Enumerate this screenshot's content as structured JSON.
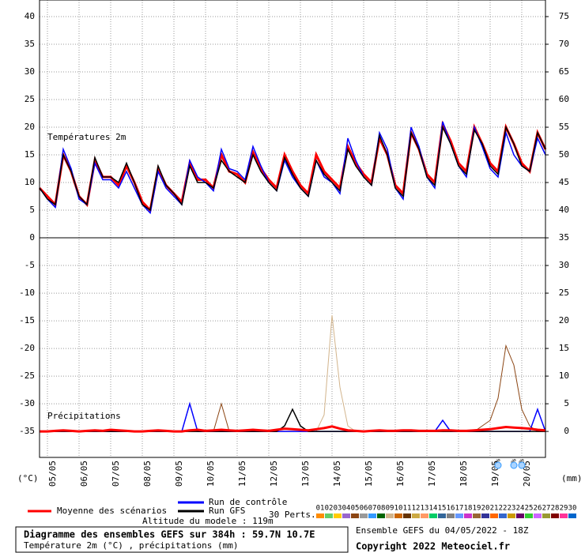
{
  "chart_data": {
    "type": "line",
    "subtitle_temp": "Températures 2m",
    "subtitle_precip": "Précipitations",
    "ylabel": "(°C)",
    "y2label": "(mm)",
    "title": "Diagramme des ensembles GEFS sur 384h : 59.7N 10.7E",
    "caption": "Température 2m (°C) , précipitations (mm)",
    "altitude": "Altitude du modele : 119m",
    "run_info": "Ensemble GEFS du 04/05/2022 - 18Z",
    "copyright": "Copyright 2022 Meteociel.fr",
    "grid": true,
    "xlim": [
      0,
      384
    ],
    "ylim": [
      -39.7,
      43
    ],
    "y2lim": [
      -4.7,
      78
    ],
    "yticks": [
      40,
      35,
      30,
      25,
      20,
      15,
      10,
      5,
      0,
      -5,
      -10,
      -15,
      -20,
      -25,
      -30,
      -35
    ],
    "y2ticks": [
      75,
      70,
      65,
      60,
      55,
      50,
      45,
      40,
      35,
      30,
      25,
      20,
      15,
      10,
      5,
      0
    ],
    "xticks": [
      {
        "value": 6,
        "label": "05/05"
      },
      {
        "value": 30,
        "label": "06/05"
      },
      {
        "value": 54,
        "label": "07/05"
      },
      {
        "value": 78,
        "label": "08/05"
      },
      {
        "value": 102,
        "label": "09/05"
      },
      {
        "value": 126,
        "label": "10/05"
      },
      {
        "value": 150,
        "label": "11/05"
      },
      {
        "value": 174,
        "label": "12/05"
      },
      {
        "value": 198,
        "label": "13/05"
      },
      {
        "value": 222,
        "label": "14/05"
      },
      {
        "value": 246,
        "label": "15/05"
      },
      {
        "value": 270,
        "label": "16/05"
      },
      {
        "value": 294,
        "label": "17/05"
      },
      {
        "value": 318,
        "label": "18/05"
      },
      {
        "value": 342,
        "label": "19/05"
      },
      {
        "value": 366,
        "label": "20/05"
      }
    ],
    "x": [
      0,
      6,
      12,
      18,
      24,
      30,
      36,
      42,
      48,
      54,
      60,
      66,
      72,
      78,
      84,
      90,
      96,
      102,
      108,
      114,
      120,
      126,
      132,
      138,
      144,
      150,
      156,
      162,
      168,
      174,
      180,
      186,
      192,
      198,
      204,
      210,
      216,
      222,
      228,
      234,
      240,
      246,
      252,
      258,
      264,
      270,
      276,
      282,
      288,
      294,
      300,
      306,
      312,
      318,
      324,
      330,
      336,
      342,
      348,
      354,
      360,
      366,
      372,
      378,
      384
    ],
    "series": [
      {
        "name": "Moyenne des scénarios",
        "color": "#ff0000",
        "width": 3,
        "values": [
          9,
          7.5,
          6,
          15,
          12,
          7.5,
          6,
          14,
          11,
          11,
          9.5,
          13,
          10,
          6.5,
          5,
          12.5,
          9.5,
          8,
          6.5,
          13.5,
          10.5,
          10.5,
          9,
          15,
          12,
          11.5,
          10,
          15.5,
          12.5,
          10.5,
          9,
          15,
          12,
          9.5,
          8,
          15,
          12,
          10.5,
          9,
          16.5,
          13.5,
          11.5,
          10,
          18,
          15,
          9.5,
          8,
          19,
          16,
          11.5,
          10,
          20.5,
          17.5,
          13.5,
          12,
          20,
          17,
          13.5,
          12,
          20,
          17,
          13.5,
          12,
          19,
          16
        ]
      },
      {
        "name": "Run de contrôle",
        "color": "#0000ff",
        "width": 1.5,
        "values": [
          9,
          7,
          5.5,
          16,
          12.5,
          7,
          6,
          13.5,
          10.5,
          10.5,
          9,
          12,
          9,
          6,
          4.5,
          12,
          9,
          7.5,
          6,
          14,
          11,
          10,
          8.5,
          16,
          12.5,
          12,
          10.5,
          16.5,
          13,
          10,
          8.5,
          14,
          11,
          9,
          7.5,
          14,
          11,
          10,
          8,
          18,
          14,
          11,
          9.5,
          19,
          16,
          9,
          7,
          20,
          16.5,
          11,
          9,
          21,
          17,
          13,
          11,
          20,
          16.5,
          12.5,
          11,
          19,
          15,
          13,
          12,
          18,
          15
        ]
      },
      {
        "name": "Run GFS",
        "color": "#000000",
        "width": 1.5,
        "values": [
          9,
          7,
          6,
          15,
          12,
          7.5,
          6,
          14.5,
          11,
          11,
          10,
          13.5,
          10,
          6,
          5,
          13,
          9.5,
          8,
          6,
          13,
          10,
          10,
          9,
          14,
          12,
          11,
          10,
          15,
          12,
          10,
          8.5,
          14.5,
          11.5,
          9,
          7.5,
          14,
          11.5,
          10,
          8.5,
          16,
          13,
          11,
          9.5,
          18.5,
          15,
          9,
          7.5,
          19,
          16,
          11,
          9.5,
          20,
          17,
          13,
          11.5,
          19.5,
          17,
          13,
          11.5,
          20,
          17,
          13,
          12,
          19,
          16
        ]
      },
      {
        "color": "#d2b48c",
        "width": 1,
        "axis": "y2",
        "values": [
          0,
          0,
          0,
          0,
          0,
          0,
          0,
          0,
          0,
          0,
          0,
          0,
          0,
          0,
          0,
          0,
          0,
          0,
          0,
          0,
          0,
          0,
          0,
          0,
          0,
          0,
          0,
          0,
          0,
          0,
          0,
          0,
          0,
          0,
          0,
          0,
          3,
          21,
          8,
          1,
          0,
          0,
          0,
          0,
          0,
          0,
          0,
          0,
          0,
          0,
          0,
          0,
          0,
          0,
          0,
          0,
          0,
          0,
          0,
          0,
          0,
          0,
          0,
          0,
          0
        ]
      },
      {
        "color": "#8b4513",
        "width": 1,
        "axis": "y2",
        "values": [
          0,
          0,
          0,
          0,
          0,
          0,
          0,
          0,
          0,
          0,
          0,
          0,
          0,
          0,
          0,
          0,
          0,
          0,
          0,
          0,
          0,
          0,
          0,
          5,
          0,
          0,
          0,
          0,
          0,
          0,
          0,
          0,
          0,
          0,
          0,
          0,
          0,
          0,
          0,
          0,
          0,
          0,
          0,
          0,
          0,
          0,
          0,
          0,
          0,
          0,
          0,
          0,
          0,
          0,
          0,
          0,
          1,
          2,
          6,
          15.5,
          12,
          4,
          1,
          0,
          0
        ]
      },
      {
        "color": "#0000ff",
        "width": 1.5,
        "axis": "y2",
        "values": [
          0,
          0,
          0,
          0,
          0,
          0,
          0,
          0,
          0,
          0,
          0,
          0,
          0,
          0,
          0,
          0,
          0,
          0,
          0,
          5,
          0,
          0,
          0,
          0,
          0,
          0,
          0,
          0,
          0,
          0,
          0,
          0,
          0,
          0,
          0,
          0,
          0,
          0,
          0,
          0,
          0,
          0,
          0,
          0,
          0,
          0,
          0,
          0,
          0,
          0,
          0,
          2,
          0,
          0,
          0,
          0,
          0,
          0,
          0,
          0,
          0,
          0,
          0,
          4,
          0
        ]
      },
      {
        "color": "#000000",
        "width": 1.5,
        "axis": "y2",
        "values": [
          0,
          0,
          0,
          0,
          0,
          0,
          0,
          0,
          0,
          0,
          0,
          0,
          0,
          0,
          0,
          0,
          0,
          0,
          0,
          0,
          0,
          0,
          0,
          0,
          0,
          0,
          0,
          0,
          0,
          0,
          0,
          1,
          4,
          1,
          0,
          0,
          0,
          0,
          0,
          0,
          0,
          0,
          0,
          0,
          0,
          0,
          0,
          0,
          0,
          0,
          0,
          0,
          0,
          0,
          0,
          0,
          0,
          0,
          0,
          0,
          0,
          0,
          0,
          0,
          0
        ]
      },
      {
        "color": "#ff0000",
        "width": 3,
        "axis": "y2",
        "values": [
          0,
          0,
          0.1,
          0.2,
          0.1,
          0,
          0.1,
          0.2,
          0.1,
          0.3,
          0.2,
          0.1,
          0,
          0,
          0.1,
          0.2,
          0.1,
          0,
          0,
          0.2,
          0.3,
          0.1,
          0.2,
          0.3,
          0.2,
          0.1,
          0.2,
          0.3,
          0.2,
          0.1,
          0.3,
          0.5,
          0.4,
          0.3,
          0.2,
          0.4,
          0.6,
          0.9,
          0.5,
          0.2,
          0.1,
          0,
          0.1,
          0.2,
          0.1,
          0.1,
          0.2,
          0.2,
          0.1,
          0.1,
          0.1,
          0.2,
          0.2,
          0.1,
          0.1,
          0.2,
          0.3,
          0.4,
          0.6,
          0.8,
          0.7,
          0.6,
          0.5,
          0.3,
          0.2
        ]
      }
    ],
    "perts_label": "30 Perts.",
    "perts": [
      {
        "name": "01",
        "color": "#ff8c00"
      },
      {
        "name": "02",
        "color": "#66cc66"
      },
      {
        "name": "03",
        "color": "#ffcc00"
      },
      {
        "name": "04",
        "color": "#9966cc"
      },
      {
        "name": "05",
        "color": "#8b4513"
      },
      {
        "name": "06",
        "color": "#999999"
      },
      {
        "name": "07",
        "color": "#3399ff"
      },
      {
        "name": "08",
        "color": "#006400"
      },
      {
        "name": "09",
        "color": "#d2b48c"
      },
      {
        "name": "10",
        "color": "#cc6600"
      },
      {
        "name": "11",
        "color": "#663300"
      },
      {
        "name": "12",
        "color": "#ccaa44"
      },
      {
        "name": "13",
        "color": "#ff9966"
      },
      {
        "name": "14",
        "color": "#00cc66"
      },
      {
        "name": "15",
        "color": "#336699"
      },
      {
        "name": "16",
        "color": "#808080"
      },
      {
        "name": "17",
        "color": "#6699ff"
      },
      {
        "name": "18",
        "color": "#cc33cc"
      },
      {
        "name": "19",
        "color": "#996633"
      },
      {
        "name": "20",
        "color": "#333399"
      },
      {
        "name": "21",
        "color": "#ff6600"
      },
      {
        "name": "22",
        "color": "#3366cc"
      },
      {
        "name": "23",
        "color": "#cc9900"
      },
      {
        "name": "24",
        "color": "#660066"
      },
      {
        "name": "25",
        "color": "#33cc33"
      },
      {
        "name": "26",
        "color": "#cc66ff"
      },
      {
        "name": "27",
        "color": "#999933"
      },
      {
        "name": "28",
        "color": "#800000"
      },
      {
        "name": "29",
        "color": "#ff3399"
      },
      {
        "name": "30",
        "color": "#0066cc"
      }
    ],
    "snow": {
      "x": [
        348,
        360,
        366
      ],
      "labels": [
        "3%",
        "3%",
        "3%"
      ]
    }
  }
}
